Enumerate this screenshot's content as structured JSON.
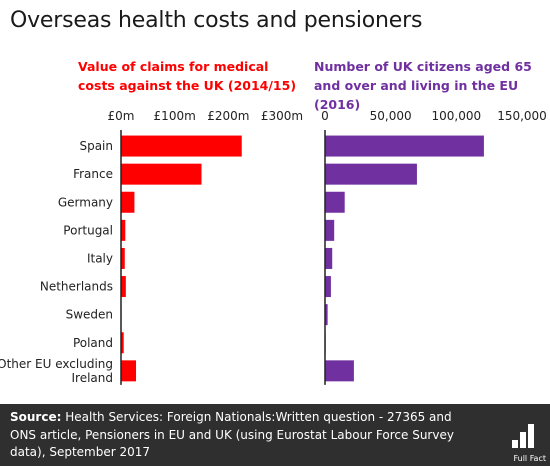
{
  "title": "Overseas health costs and pensioners",
  "colors": {
    "left": "#ff0000",
    "right": "#7030a0",
    "axis": "#222222"
  },
  "chart_data": [
    {
      "type": "bar",
      "orientation": "horizontal",
      "title": "Value of claims for medical costs against the UK (2014/15)",
      "categories": [
        "Spain",
        "France",
        "Germany",
        "Portugal",
        "Italy",
        "Netherlands",
        "Sweden",
        "Poland",
        "Other EU excluding Ireland"
      ],
      "values": [
        225,
        150,
        25,
        8,
        7,
        9,
        1,
        5,
        28
      ],
      "unit": "£m",
      "xlim": [
        0,
        300
      ],
      "ticks": [
        0,
        100,
        200,
        300
      ],
      "tick_labels": [
        "£0m",
        "£100m",
        "£200m",
        "£300m"
      ],
      "grid": false
    },
    {
      "type": "bar",
      "orientation": "horizontal",
      "title": "Number of UK citizens aged 65 and over and living in the EU (2016)",
      "categories": [
        "Spain",
        "France",
        "Germany",
        "Portugal",
        "Italy",
        "Netherlands",
        "Sweden",
        "Poland",
        "Other EU excluding Ireland"
      ],
      "values": [
        121000,
        70000,
        15000,
        7000,
        5500,
        4500,
        2000,
        500,
        22000
      ],
      "xlim": [
        0,
        150000
      ],
      "ticks": [
        0,
        50000,
        100000,
        150000
      ],
      "tick_labels": [
        "0",
        "50,000",
        "100,000",
        "150,000"
      ],
      "grid": false
    }
  ],
  "footer": {
    "source_label": "Source:",
    "source_text": " Health Services: Foreign Nationals:Written question - 27365 and ONS article, Pensioners in EU and UK (using Eurostat Labour Force Survey data), September 2017",
    "logo_text": "Full Fact"
  }
}
